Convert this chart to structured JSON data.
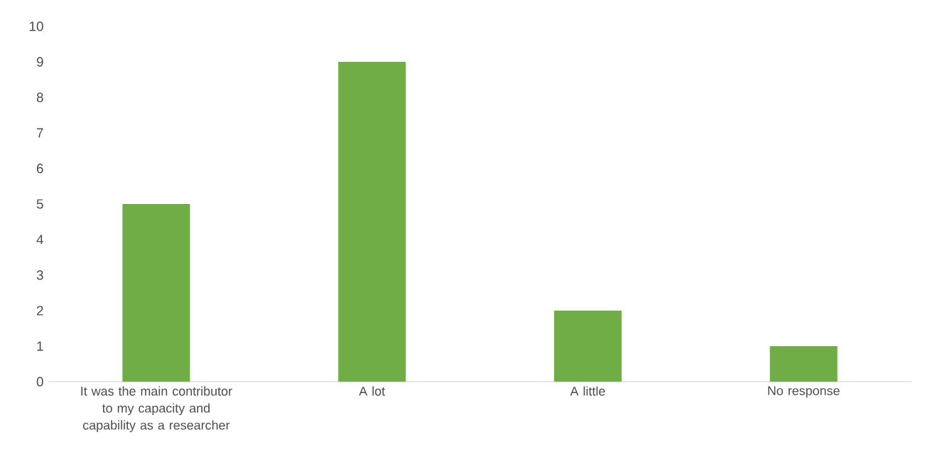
{
  "chart_data": {
    "type": "bar",
    "categories": [
      "It was the main contributor to my capacity and capability as a researcher",
      "A lot",
      "A little",
      "No response"
    ],
    "values": [
      5,
      9,
      2,
      1
    ],
    "color": "#70ad47",
    "ylim": [
      0,
      10
    ],
    "yticks": [
      0,
      1,
      2,
      3,
      4,
      5,
      6,
      7,
      8,
      9,
      10
    ]
  }
}
